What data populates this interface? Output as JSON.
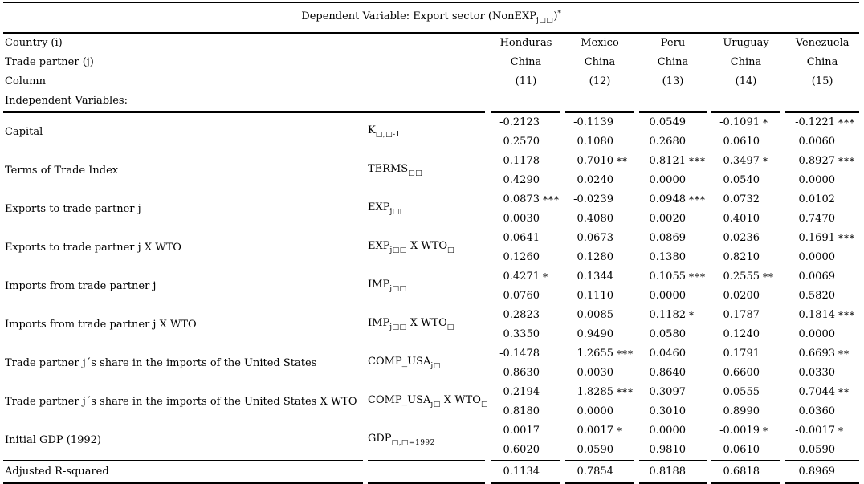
{
  "title": {
    "plain": "Dependent Variable: Export sector (NonEXPj□□)*",
    "segments": [
      [
        "n",
        "Dependent Variable: Export sector (NonEXP"
      ],
      [
        "s",
        "j□□"
      ],
      [
        "n",
        ")"
      ],
      [
        "u",
        "*"
      ]
    ]
  },
  "header": {
    "country_label": "Country (i)",
    "partner_label": "Trade partner (j)",
    "column_label": "Column",
    "indep_label": "Independent Variables:",
    "countries": [
      "Honduras",
      "Mexico",
      "Peru",
      "Uruguay",
      "Venezuela"
    ],
    "partners": [
      "China",
      "China",
      "China",
      "China",
      "China"
    ],
    "columns": [
      "(11)",
      "(12)",
      "(13)",
      "(14)",
      "(15)"
    ]
  },
  "rows": [
    {
      "label": "Capital",
      "symbol_plain": "K□,□-1",
      "symbol": [
        [
          "n",
          "K"
        ],
        [
          "s",
          "□,□-1"
        ]
      ],
      "cells": [
        {
          "coef": "-0.2123",
          "stars": "",
          "p": "0.2570"
        },
        {
          "coef": "-0.1139",
          "stars": "",
          "p": "0.1080"
        },
        {
          "coef": "0.0549",
          "stars": "",
          "p": "0.2680"
        },
        {
          "coef": "-0.1091",
          "stars": "*",
          "p": "0.0610"
        },
        {
          "coef": "-0.1221",
          "stars": "***",
          "p": "0.0060"
        }
      ]
    },
    {
      "label": "Terms of Trade Index",
      "symbol_plain": "TERMS□□",
      "symbol": [
        [
          "n",
          "TERMS"
        ],
        [
          "s",
          "□□"
        ]
      ],
      "cells": [
        {
          "coef": "-0.1178",
          "stars": "",
          "p": "0.4290"
        },
        {
          "coef": "0.7010",
          "stars": "**",
          "p": "0.0240"
        },
        {
          "coef": "0.8121",
          "stars": "***",
          "p": "0.0000"
        },
        {
          "coef": "0.3497",
          "stars": "*",
          "p": "0.0540"
        },
        {
          "coef": "0.8927",
          "stars": "***",
          "p": "0.0000"
        }
      ]
    },
    {
      "label": "Exports to trade partner j",
      "symbol_plain": "EXPj□□",
      "symbol": [
        [
          "n",
          "EXP"
        ],
        [
          "s",
          "j□□"
        ]
      ],
      "cells": [
        {
          "coef": "0.0873",
          "stars": "***",
          "p": "0.0030"
        },
        {
          "coef": "-0.0239",
          "stars": "",
          "p": "0.4080"
        },
        {
          "coef": "0.0948",
          "stars": "***",
          "p": "0.0020"
        },
        {
          "coef": "0.0732",
          "stars": "",
          "p": "0.4010"
        },
        {
          "coef": "0.0102",
          "stars": "",
          "p": "0.7470"
        }
      ]
    },
    {
      "label": "Exports to trade partner j X WTO",
      "symbol_plain": "EXPj□□ X WTO□",
      "symbol": [
        [
          "n",
          "EXP"
        ],
        [
          "s",
          "j□□"
        ],
        [
          "n",
          " X WTO"
        ],
        [
          "s",
          "□"
        ]
      ],
      "cells": [
        {
          "coef": "-0.0641",
          "stars": "",
          "p": "0.1260"
        },
        {
          "coef": "0.0673",
          "stars": "",
          "p": "0.1280"
        },
        {
          "coef": "0.0869",
          "stars": "",
          "p": "0.1380"
        },
        {
          "coef": "-0.0236",
          "stars": "",
          "p": "0.8210"
        },
        {
          "coef": "-0.1691",
          "stars": "***",
          "p": "0.0000"
        }
      ]
    },
    {
      "label": "Imports from trade partner j",
      "symbol_plain": "IMPj□□",
      "symbol": [
        [
          "n",
          "IMP"
        ],
        [
          "s",
          "j□□"
        ]
      ],
      "cells": [
        {
          "coef": "0.4271",
          "stars": "*",
          "p": "0.0760"
        },
        {
          "coef": "0.1344",
          "stars": "",
          "p": "0.1110"
        },
        {
          "coef": "0.1055",
          "stars": "***",
          "p": "0.0000"
        },
        {
          "coef": "0.2555",
          "stars": "**",
          "p": "0.0200"
        },
        {
          "coef": "0.0069",
          "stars": "",
          "p": "0.5820"
        }
      ]
    },
    {
      "label": "Imports from trade partner j X WTO",
      "symbol_plain": "IMPj□□ X WTO□",
      "symbol": [
        [
          "n",
          "IMP"
        ],
        [
          "s",
          "j□□"
        ],
        [
          "n",
          " X WTO"
        ],
        [
          "s",
          "□"
        ]
      ],
      "cells": [
        {
          "coef": "-0.2823",
          "stars": "",
          "p": "0.3350"
        },
        {
          "coef": "0.0085",
          "stars": "",
          "p": "0.9490"
        },
        {
          "coef": "0.1182",
          "stars": "*",
          "p": "0.0580"
        },
        {
          "coef": "0.1787",
          "stars": "",
          "p": "0.1240"
        },
        {
          "coef": "0.1814",
          "stars": "***",
          "p": "0.0000"
        }
      ]
    },
    {
      "label": "Trade partner j´s share in the imports of the United States",
      "symbol_plain": "COMP_USAj□",
      "symbol": [
        [
          "n",
          "COMP_USA"
        ],
        [
          "s",
          "j□"
        ]
      ],
      "cells": [
        {
          "coef": "-0.1478",
          "stars": "",
          "p": "0.8630"
        },
        {
          "coef": "1.2655",
          "stars": "***",
          "p": "0.0030"
        },
        {
          "coef": "0.0460",
          "stars": "",
          "p": "0.8640"
        },
        {
          "coef": "0.1791",
          "stars": "",
          "p": "0.6600"
        },
        {
          "coef": "0.6693",
          "stars": "**",
          "p": "0.0330"
        }
      ]
    },
    {
      "label": "Trade partner j´s share in the imports of the United States X WTO",
      "symbol_plain": "COMP_USAj□ X WTO□",
      "symbol": [
        [
          "n",
          "COMP_USA"
        ],
        [
          "s",
          "j□"
        ],
        [
          "n",
          " X WTO"
        ],
        [
          "s",
          "□"
        ]
      ],
      "cells": [
        {
          "coef": "-0.2194",
          "stars": "",
          "p": "0.8180"
        },
        {
          "coef": "-1.8285",
          "stars": "***",
          "p": "0.0000"
        },
        {
          "coef": "-0.3097",
          "stars": "",
          "p": "0.3010"
        },
        {
          "coef": "-0.0555",
          "stars": "",
          "p": "0.8990"
        },
        {
          "coef": "-0.7044",
          "stars": "**",
          "p": "0.0360"
        }
      ]
    },
    {
      "label": "Initial GDP (1992)",
      "symbol_plain": "GDP□,□=1992",
      "symbol": [
        [
          "n",
          "GDP"
        ],
        [
          "s",
          "□,□=1992"
        ]
      ],
      "cells": [
        {
          "coef": "0.0017",
          "stars": "",
          "p": "0.6020"
        },
        {
          "coef": "0.0017",
          "stars": "*",
          "p": "0.0590"
        },
        {
          "coef": "0.0000",
          "stars": "",
          "p": "0.9810"
        },
        {
          "coef": "-0.0019",
          "stars": "*",
          "p": "0.0610"
        },
        {
          "coef": "-0.0017",
          "stars": "*",
          "p": "0.0590"
        }
      ]
    }
  ],
  "footer": {
    "label": "Adjusted R-squared",
    "values": [
      "0.1134",
      "0.7854",
      "0.8188",
      "0.6818",
      "0.8969"
    ]
  }
}
